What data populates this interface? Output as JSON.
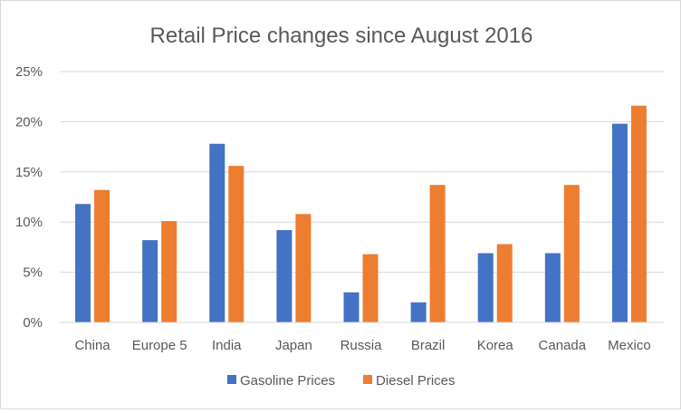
{
  "chart_data": {
    "type": "bar",
    "title": "Retail Price changes since August 2016",
    "xlabel": "",
    "ylabel": "",
    "ylim": [
      0,
      25
    ],
    "y_ticks": [
      0,
      5,
      10,
      15,
      20,
      25
    ],
    "y_tick_labels": [
      "0%",
      "5%",
      "10%",
      "15%",
      "20%",
      "25%"
    ],
    "grid": true,
    "legend_position": "bottom",
    "categories": [
      "China",
      "Europe 5",
      "India",
      "Japan",
      "Russia",
      "Brazil",
      "Korea",
      "Canada",
      "Mexico"
    ],
    "series": [
      {
        "name": "Gasoline Prices",
        "color": "#4472C4",
        "values": [
          11.8,
          8.2,
          17.8,
          9.2,
          3.0,
          2.0,
          6.9,
          6.9,
          19.8
        ]
      },
      {
        "name": "Diesel Prices",
        "color": "#ED7D31",
        "values": [
          13.2,
          10.1,
          15.6,
          10.8,
          6.8,
          13.7,
          7.8,
          13.7,
          21.6
        ]
      }
    ]
  }
}
